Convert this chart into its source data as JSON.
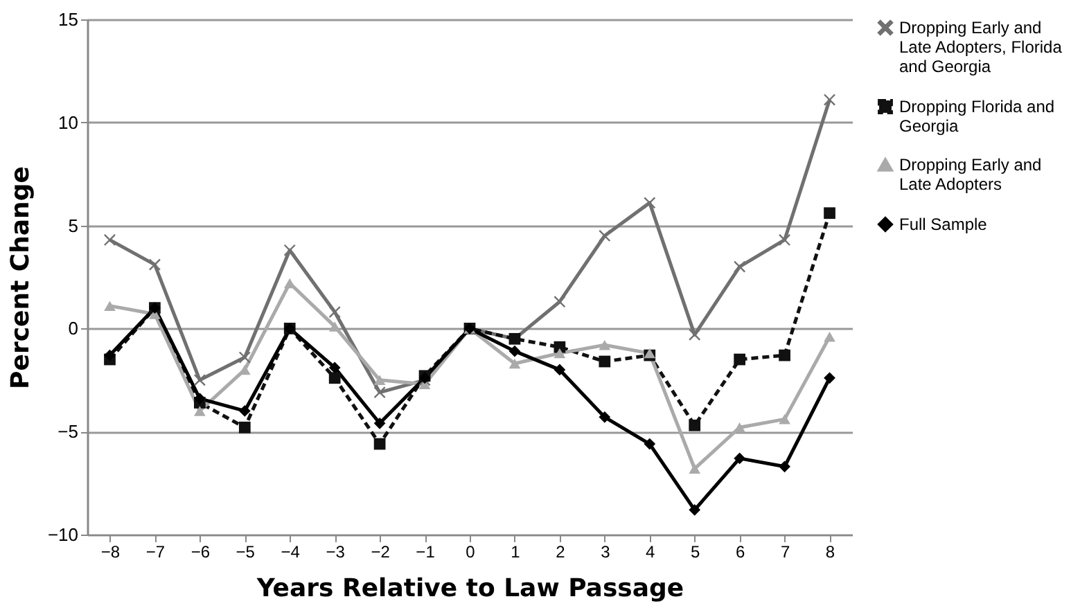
{
  "chart_data": {
    "type": "line",
    "xlabel": "Years Relative to Law Passage",
    "ylabel": "Percent Change",
    "x": [
      -8,
      -7,
      -6,
      -5,
      -4,
      -3,
      -2,
      -1,
      0,
      1,
      2,
      3,
      4,
      5,
      6,
      7,
      8
    ],
    "xlim": [
      -8.5,
      8.5
    ],
    "xticks": [
      -8,
      -7,
      -6,
      -5,
      -4,
      -3,
      -2,
      -1,
      0,
      1,
      2,
      3,
      4,
      5,
      6,
      7,
      8
    ],
    "ylim": [
      -10,
      15
    ],
    "yticks": [
      -10,
      -5,
      0,
      5,
      10,
      15
    ],
    "grid": "y",
    "legend": "right",
    "series": [
      {
        "name": "Dropping Early and Late Adopters, Florida and Georgia",
        "color": "#707070",
        "marker": "cross",
        "line_style": "solid",
        "values": [
          4.3,
          3.1,
          -2.5,
          -1.4,
          3.8,
          0.8,
          -3.1,
          -2.5,
          0,
          -0.5,
          1.3,
          4.5,
          6.1,
          -0.3,
          3.0,
          4.3,
          11.1
        ]
      },
      {
        "name": "Dropping Florida and Georgia",
        "color": "#111111",
        "marker": "square",
        "line_style": "dashed",
        "values": [
          -1.5,
          1.0,
          -3.6,
          -4.8,
          0,
          -2.4,
          -5.6,
          -2.3,
          0,
          -0.5,
          -0.9,
          -1.6,
          -1.3,
          -4.7,
          -1.5,
          -1.3,
          5.6
        ]
      },
      {
        "name": "Dropping Early and Late Adopters",
        "color": "#aaaaaa",
        "marker": "triangle",
        "line_style": "solid",
        "values": [
          1.1,
          0.7,
          -4.0,
          -2.0,
          2.2,
          0.1,
          -2.5,
          -2.7,
          0,
          -1.7,
          -1.2,
          -0.8,
          -1.2,
          -6.8,
          -4.8,
          -4.4,
          -0.4
        ]
      },
      {
        "name": "Full Sample",
        "color": "#000000",
        "marker": "diamond",
        "line_style": "solid",
        "values": [
          -1.3,
          1.0,
          -3.4,
          -4.0,
          0,
          -1.9,
          -4.6,
          -2.4,
          0,
          -1.1,
          -2.0,
          -4.3,
          -5.6,
          -8.8,
          -6.3,
          -6.7,
          -2.4
        ]
      }
    ]
  }
}
